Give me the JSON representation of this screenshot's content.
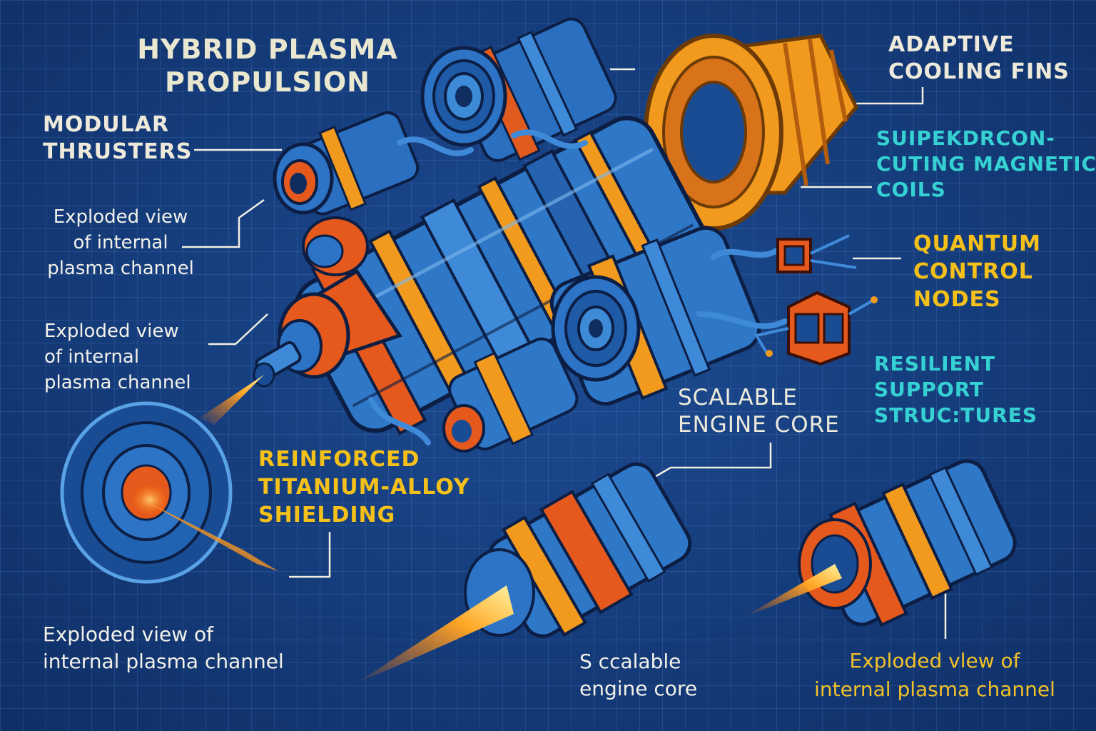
{
  "title": {
    "line1": "HYBRID PLASMA",
    "line2": "PROPULSION"
  },
  "labels": {
    "modular_thrusters": [
      "MODULAR",
      "THRUSTERS"
    ],
    "exploded_view_1": [
      "Exploded view",
      "of internal",
      "plasma channel"
    ],
    "exploded_view_2": [
      "Exploded view",
      "of internal",
      "plasma channel"
    ],
    "exploded_view_3": [
      "Exploded view of",
      "internal plasma channel"
    ],
    "adaptive_cooling_fins": [
      "ADAPTIVE",
      "COOLING FINS"
    ],
    "superconducting_coils": [
      "SUIPEKDRCON-",
      "CUTING MAGNETIC",
      "COILS"
    ],
    "quantum_control_nodes": [
      "QUANTUM",
      "CONTROL",
      "NODES"
    ],
    "resilient_support": [
      "RESILIENT",
      "SUPPORT",
      "STRUC:TURES"
    ],
    "scalable_engine_core": [
      "SCALABLE",
      "ENGINE CORE"
    ],
    "reinforced_shielding": [
      "REINFORCED",
      "TITANIUM-ALLOY",
      "SHIELDING"
    ],
    "scalable_engine_core_small": [
      "S ccalable",
      "engine core"
    ],
    "exploded_view_4": [
      "Exploded vlew of",
      "internal plasma channel"
    ]
  },
  "colors": {
    "background": "#143a78",
    "grid": "#5a8fd6",
    "engine_blue": "#2f78c8",
    "engine_orange": "#f29a1e",
    "engine_red_orange": "#e5591c",
    "label_cyan": "#35d1d3",
    "label_yellow": "#f4c019",
    "label_cream": "#eeeadb",
    "plasma": "#ff9a2a"
  }
}
